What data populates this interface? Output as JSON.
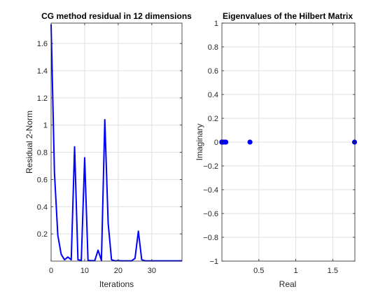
{
  "chart_data": [
    {
      "type": "line",
      "title": "CG method residual in 12 dimensions",
      "xlabel": "Iterations",
      "ylabel": "Residual 2-Norm",
      "xlim": [
        0,
        39
      ],
      "ylim": [
        0,
        1.75
      ],
      "grid": true,
      "xticks": [
        0,
        10,
        20,
        30
      ],
      "xtick_labels": [
        "0",
        "10",
        "20",
        "30"
      ],
      "yticks": [
        0.2,
        0.4,
        0.6,
        0.8,
        1,
        1.2,
        1.4,
        1.6
      ],
      "ytick_labels": [
        "0.2",
        "0.4",
        "0.6",
        "0.8",
        "1",
        "1.2",
        "1.4",
        "1.6"
      ],
      "line_color": "#0000ff",
      "x": [
        0,
        1,
        2,
        3,
        4,
        5,
        6,
        7,
        8,
        9,
        10,
        11,
        12,
        13,
        14,
        15,
        16,
        17,
        18,
        19,
        20,
        21,
        22,
        23,
        24,
        25,
        26,
        27,
        28,
        29,
        30,
        31,
        32,
        33,
        34,
        35,
        36,
        37,
        38,
        39
      ],
      "y": [
        1.74,
        0.65,
        0.19,
        0.05,
        0.01,
        0.03,
        0.01,
        0.84,
        0.01,
        0.005,
        0.76,
        0.005,
        0.003,
        0.003,
        0.08,
        0.005,
        1.04,
        0.28,
        0.01,
        0.002,
        0.003,
        0.002,
        0.002,
        0.002,
        0.002,
        0.02,
        0.22,
        0.01,
        0.002,
        0.002,
        0.002,
        0.002,
        0.002,
        0.002,
        0.002,
        0.002,
        0.002,
        0.002,
        0.002,
        0.002
      ]
    },
    {
      "type": "scatter",
      "title": "Eigenvalues of the Hilbert Matrix",
      "xlabel": "Real",
      "ylabel": "Imaginary",
      "xlim": [
        0,
        1.8
      ],
      "ylim": [
        -1,
        1
      ],
      "grid": true,
      "xticks": [
        0.5,
        1,
        1.5
      ],
      "xtick_labels": [
        "0.5",
        "1",
        "1.5"
      ],
      "yticks": [
        -1,
        -0.8,
        -0.6,
        -0.4,
        -0.2,
        0,
        0.2,
        0.4,
        0.6,
        0.8,
        1
      ],
      "ytick_labels": [
        "−1",
        "−0.8",
        "−0.6",
        "−0.4",
        "−0.2",
        "0",
        "0.2",
        "0.4",
        "0.6",
        "0.8",
        "1"
      ],
      "marker_color": "#0000ff",
      "x": [
        0.0,
        0.0,
        0.0,
        0.0,
        0.0,
        0.0,
        0.0,
        0.0,
        0.0,
        0.026,
        0.053,
        0.38,
        1.795
      ],
      "y": [
        0,
        0,
        0,
        0,
        0,
        0,
        0,
        0,
        0,
        0,
        0,
        0,
        0
      ]
    }
  ]
}
